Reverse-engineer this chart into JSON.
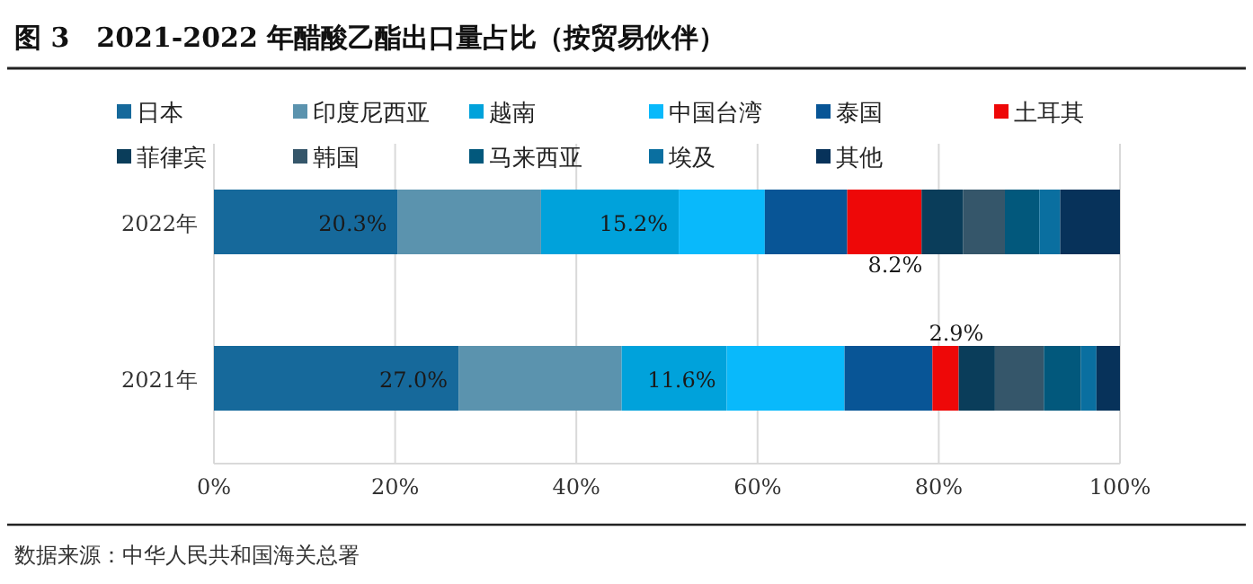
{
  "chart_data": {
    "type": "bar",
    "title": "图 3　2021-2022 年醋酸乙酯出口量占比（按贸易伙伴）",
    "stacked": true,
    "orientation": "horizontal",
    "categories": [
      "2022年",
      "2021年"
    ],
    "series": [
      {
        "name": "日本",
        "color": "#16699b",
        "values": [
          20.3,
          27.0
        ],
        "value_labels": [
          "20.3%",
          "27.0%"
        ]
      },
      {
        "name": "印度尼西亚",
        "color": "#5b93ae",
        "values": [
          15.8,
          18.0
        ]
      },
      {
        "name": "越南",
        "color": "#00a2db",
        "values": [
          15.2,
          11.6
        ],
        "value_labels": [
          "15.2%",
          "11.6%"
        ]
      },
      {
        "name": "中国台湾",
        "color": "#09b9fb",
        "values": [
          9.5,
          13.0
        ]
      },
      {
        "name": "泰国",
        "color": "#085596",
        "values": [
          9.1,
          9.7
        ]
      },
      {
        "name": "土耳其",
        "color": "#ee0808",
        "values": [
          8.2,
          2.9
        ],
        "value_labels": [
          "8.2%",
          "2.9%"
        ]
      },
      {
        "name": "菲律宾",
        "color": "#0a3d5a",
        "values": [
          4.6,
          4.0
        ]
      },
      {
        "name": "韩国",
        "color": "#35566a",
        "values": [
          4.6,
          5.4
        ]
      },
      {
        "name": "马来西亚",
        "color": "#02587c",
        "values": [
          3.8,
          4.1
        ]
      },
      {
        "name": "埃及",
        "color": "#0a6fa0",
        "values": [
          2.3,
          1.7
        ]
      },
      {
        "name": "其他",
        "color": "#07325a",
        "values": [
          6.6,
          2.6
        ]
      }
    ],
    "xlim": [
      0,
      100
    ],
    "xticks": [
      {
        "value": 0,
        "label": "0%"
      },
      {
        "value": 20,
        "label": "20%"
      },
      {
        "value": 40,
        "label": "40%"
      },
      {
        "value": 60,
        "label": "60%"
      },
      {
        "value": 80,
        "label": "80%"
      },
      {
        "value": 100,
        "label": "100%"
      }
    ],
    "grid": "x",
    "legend": "top",
    "annotations": [
      "数据来源：中华人民共和国海关总署"
    ]
  }
}
